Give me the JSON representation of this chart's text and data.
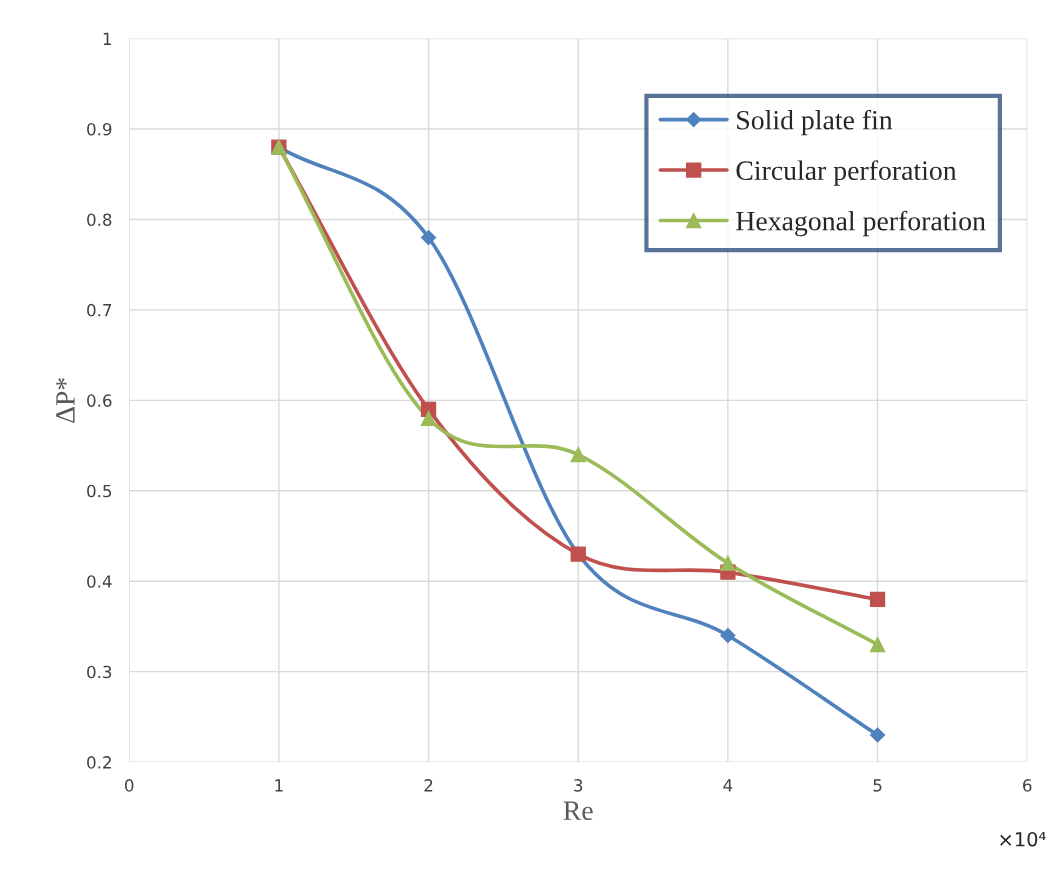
{
  "chart_data": {
    "type": "line",
    "xlabel": "Re",
    "ylabel": "ΔP*",
    "x": [
      1,
      2,
      3,
      4,
      5
    ],
    "series": [
      {
        "name": "Solid plate fin",
        "color": "#4f81bd",
        "marker": "diamond",
        "values": [
          0.88,
          0.78,
          0.43,
          0.34,
          0.23
        ]
      },
      {
        "name": "Circular perforation",
        "color": "#c0504d",
        "marker": "square",
        "values": [
          0.88,
          0.59,
          0.43,
          0.41,
          0.38
        ]
      },
      {
        "name": "Hexagonal perforation",
        "color": "#9bbb59",
        "marker": "triangle",
        "values": [
          0.88,
          0.58,
          0.54,
          0.42,
          0.33
        ]
      }
    ],
    "xlim": [
      0,
      6
    ],
    "xticks": [
      0,
      1,
      2,
      3,
      4,
      5,
      6
    ],
    "ylim": [
      0.2,
      1
    ],
    "yticks": [
      0.2,
      0.3,
      0.4,
      0.5,
      0.6,
      0.7,
      0.8,
      0.9,
      1
    ],
    "grid": true,
    "legend": "top right",
    "line_style": "solid",
    "annotations": [
      "×10⁴"
    ]
  }
}
